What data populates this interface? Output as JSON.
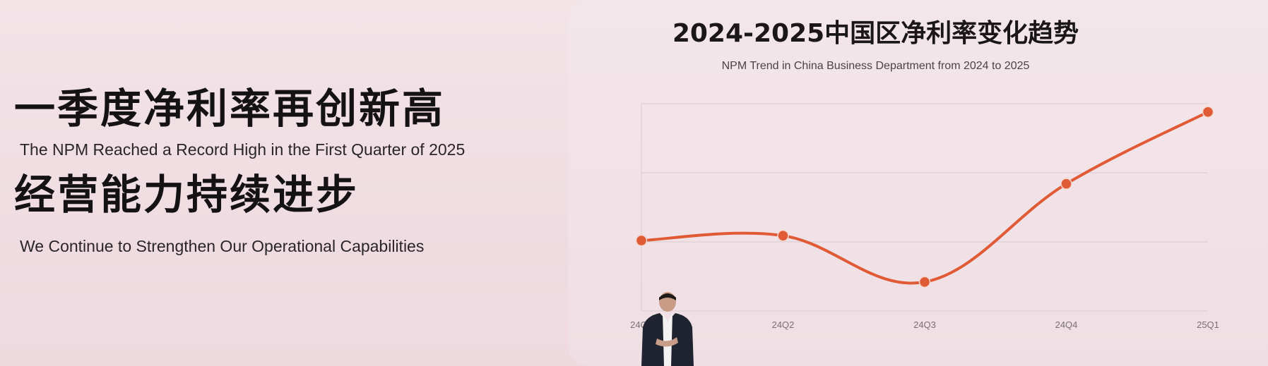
{
  "slide": {
    "headline_1": "一季度净利率再创新高",
    "subline_1": "The NPM Reached a Record High in the First Quarter of 2025",
    "headline_2": "经营能力持续进步",
    "subline_2": "We Continue to Strengthen Our Operational Capabilities"
  },
  "colors": {
    "line": "#e05a35",
    "marker": "#e05a35",
    "grid": "#ddd0d4",
    "background": "#f0e0e5"
  },
  "chart_data": {
    "type": "line",
    "title": "2024-2025中国区净利率变化趋势",
    "subtitle": "NPM Trend in China Business Department from 2024 to 2025",
    "categories": [
      "24Q1",
      "24Q2",
      "24Q3",
      "24Q4",
      "25Q1"
    ],
    "series": [
      {
        "values": [
          1.02,
          1.09,
          0.42,
          1.84,
          2.88
        ]
      }
    ],
    "ylim": [
      0,
      3
    ],
    "grid": true,
    "smooth": true,
    "y_tick_labels_shown": false
  }
}
